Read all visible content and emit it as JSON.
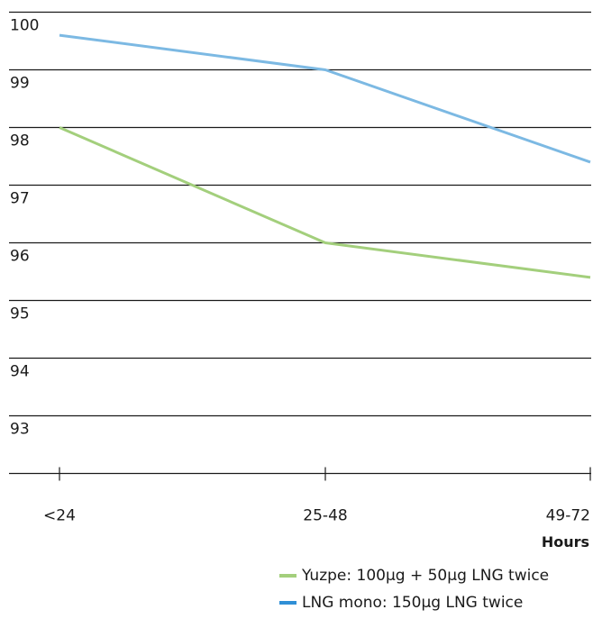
{
  "chart_data": {
    "type": "line",
    "categories": [
      "<24",
      "25-48",
      "49-72"
    ],
    "xlabel": "Hours",
    "ylabel": "",
    "ylim": [
      92,
      100
    ],
    "yticks": [
      100,
      99,
      98,
      97,
      96,
      95,
      94,
      93
    ],
    "grid": true,
    "legend_position": "bottom-right",
    "series": [
      {
        "name": "Yuzpe: 100µg + 50µg LNG twice",
        "color": "#a3cf7c",
        "values": [
          98.0,
          96.0,
          95.4
        ]
      },
      {
        "name": "LNG mono: 150µg LNG twice",
        "color": "#7cb9e3",
        "values": [
          99.6,
          99.0,
          97.4
        ]
      }
    ]
  },
  "legend": {
    "items": [
      {
        "label": "Yuzpe: 100µg + 50µg LNG twice",
        "color": "#a3cf7c"
      },
      {
        "label": "LNG mono: 150µg LNG twice",
        "color": "#2f8fd6"
      }
    ]
  },
  "colors": {
    "gridline": "#1a1a1a",
    "text": "#1a1a1a"
  }
}
